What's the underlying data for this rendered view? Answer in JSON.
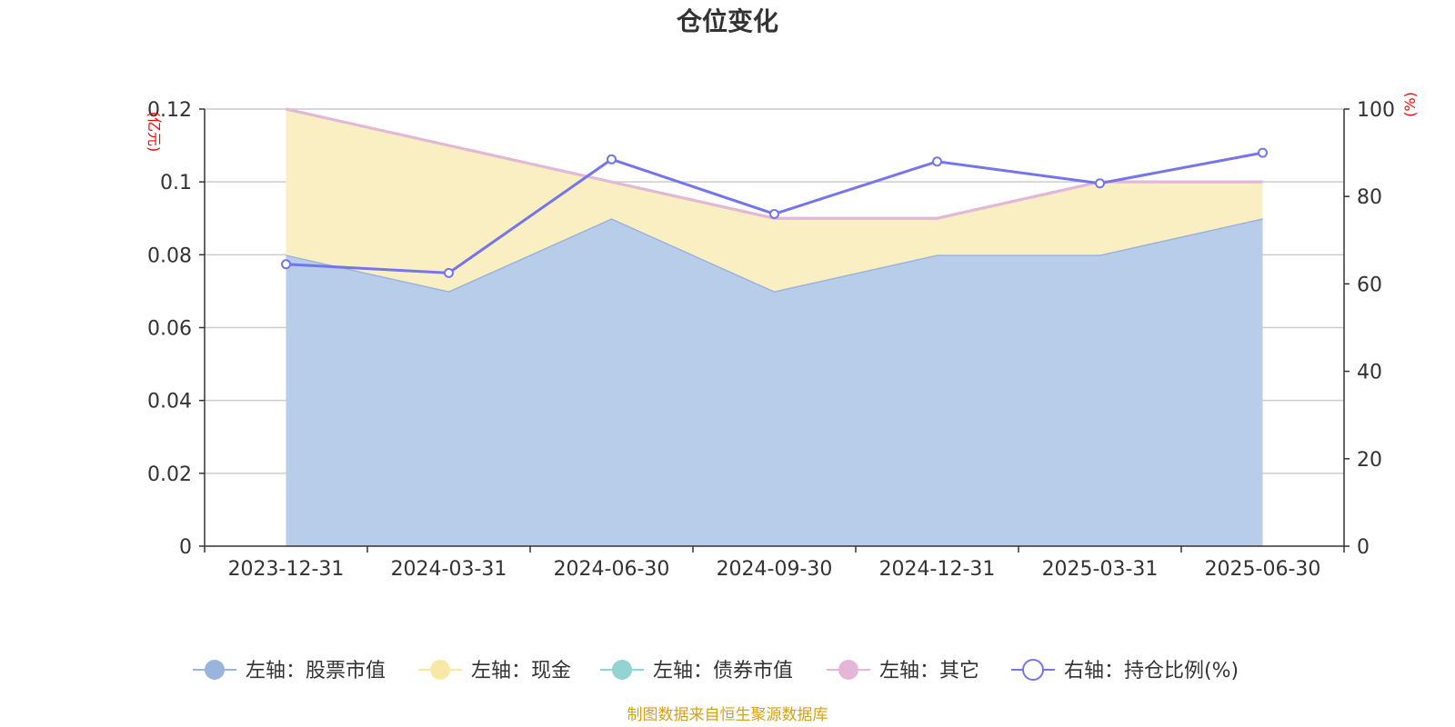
{
  "chart_data": {
    "type": "area",
    "title": "仓位变化",
    "source": "制图数据来自恒生聚源数据库",
    "left_unit": "(亿元)",
    "right_unit": "(%)",
    "categories": [
      "2023-12-31",
      "2024-03-31",
      "2024-06-30",
      "2024-09-30",
      "2024-12-31",
      "2025-03-31",
      "2025-06-30"
    ],
    "left_axis": {
      "min": 0,
      "max": 0.12,
      "ticks": [
        0,
        0.02,
        0.04,
        0.06,
        0.08,
        0.1,
        0.12
      ],
      "tick_labels": [
        "0",
        "0.02",
        "0.04",
        "0.06",
        "0.08",
        "0.1",
        "0.12"
      ]
    },
    "right_axis": {
      "min": 0,
      "max": 100,
      "ticks": [
        0,
        20,
        40,
        60,
        80,
        100
      ],
      "tick_labels": [
        "0",
        "20",
        "40",
        "60",
        "80",
        "100"
      ]
    },
    "grid": true,
    "legend_position": "bottom",
    "stacked_series": [
      {
        "name": "左轴：股票市值",
        "axis": "left",
        "line_color": "#9ab4dd",
        "fill_color": "#b8cdea",
        "values": [
          0.08,
          0.07,
          0.09,
          0.07,
          0.08,
          0.08,
          0.09
        ]
      },
      {
        "name": "左轴：现金",
        "axis": "left",
        "line_color": "#f8e8a6",
        "fill_color": "#faefc2",
        "values": [
          0.04,
          0.04,
          0.01,
          0.02,
          0.01,
          0.02,
          0.01
        ]
      },
      {
        "name": "左轴：债券市值",
        "axis": "left",
        "line_color": "#93d3d2",
        "fill_color": "#93d3d2",
        "values": [
          0,
          0,
          0,
          0,
          0,
          0,
          0
        ]
      },
      {
        "name": "左轴：其它",
        "axis": "left",
        "line_color": "#e6b6d9",
        "fill_color": "#e6b6d9",
        "values": [
          0,
          0,
          0,
          0,
          0,
          0,
          0
        ]
      }
    ],
    "line_series": [
      {
        "name": "右轴：持仓比例(%)",
        "axis": "right",
        "color": "#7474ee",
        "values": [
          64.5,
          62.5,
          88.5,
          76,
          88,
          83,
          90
        ]
      }
    ],
    "colors": {
      "axis": "#333333",
      "grid": "#cccccc",
      "unit_text": "#ff0000",
      "source_text": "#d4a017"
    }
  }
}
